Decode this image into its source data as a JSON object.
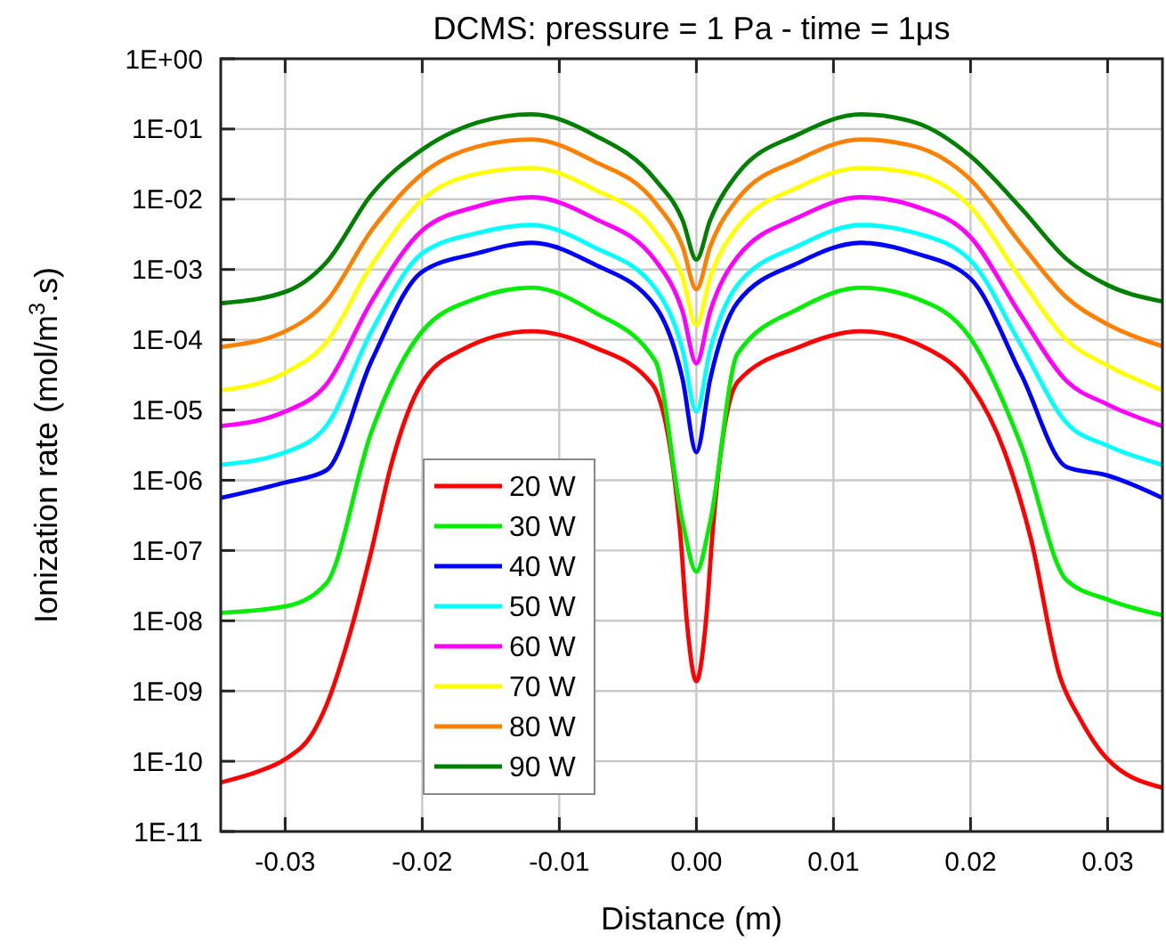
{
  "chart_data": {
    "type": "line",
    "title": "DCMS: pressure = 1 Pa - time = 1μs",
    "xlabel": "Distance (m)",
    "ylabel": "Ionization rate (mol/m$^{3}$.s)",
    "log": "y",
    "grid": true,
    "legend": "bottom left",
    "marker": "none",
    "line_style": "solid",
    "xlim": [
      -0.0347,
      0.034
    ],
    "xticks": [
      -0.03,
      -0.02,
      -0.01,
      {
        "value": 0,
        "label": "0.00"
      },
      0.01,
      0.02,
      0.03
    ],
    "ylim": [
      1e-11,
      1
    ],
    "yticks": [
      {
        "value": 1e-11,
        "label": "1E-11"
      },
      {
        "value": 1e-10,
        "label": "1E-10"
      },
      {
        "value": 1e-09,
        "label": "1E-09"
      },
      {
        "value": 1e-08,
        "label": "1E-08"
      },
      {
        "value": 1e-07,
        "label": "1E-07"
      },
      {
        "value": 1e-06,
        "label": "1E-06"
      },
      {
        "value": 1e-05,
        "label": "1E-05"
      },
      {
        "value": 0.0001,
        "label": "1E-04"
      },
      {
        "value": 0.001,
        "label": "1E-03"
      },
      {
        "value": 0.01,
        "label": "1E-02"
      },
      {
        "value": 0.1,
        "label": "1E-01"
      },
      {
        "value": 1,
        "label": "1E+00"
      }
    ],
    "x": [
      -0.0347,
      -0.03,
      -0.027,
      -0.0237,
      -0.02,
      -0.016,
      -0.012,
      -0.0075,
      -0.003,
      -0.001,
      0,
      0.001,
      0.003,
      0.0075,
      0.012,
      0.016,
      0.02,
      0.0237,
      0.027,
      0.03,
      0.034
    ],
    "series": [
      {
        "name": "20 W",
        "color": "#ff0000",
        "x": [
          -0.0347,
          -0.032,
          -0.03,
          -0.028,
          -0.027,
          -0.0254,
          -0.0237,
          -0.0223,
          -0.0201,
          -0.0171,
          -0.012,
          -0.0075,
          -0.0032,
          -0.0012,
          -0.0007,
          0,
          0.0007,
          0.0012,
          0.003,
          0.0075,
          0.012,
          0.017,
          0.02,
          0.0225,
          0.0244,
          0.0265,
          0.028,
          0.03,
          0.034
        ],
        "values": [
          5e-11,
          7.1e-11,
          1.07e-10,
          2.5e-10,
          6.2e-10,
          5.4e-09,
          1e-07,
          1.55e-06,
          2.3e-05,
          7.2e-05,
          0.000132,
          7.9e-05,
          2.3e-05,
          2e-07,
          1e-08,
          1.38e-09,
          1e-08,
          2e-07,
          2.5e-05,
          7.9e-05,
          0.000132,
          7.2e-05,
          2.3e-05,
          2.5e-06,
          1.48e-07,
          1.66e-09,
          4e-10,
          1.07e-10,
          4.2e-11
        ]
      },
      {
        "name": "30 W",
        "color": "#00ee00",
        "values": [
          1.3e-08,
          1.6e-08,
          3.4e-08,
          4.9e-06,
          0.000132,
          0.00039,
          0.00055,
          0.00025,
          5e-05,
          2.5e-07,
          5e-08,
          2.5e-07,
          6.3e-05,
          0.00028,
          0.00055,
          0.00039,
          0.000105,
          3.1e-06,
          3.8e-08,
          2e-08,
          1.2e-08
        ]
      },
      {
        "name": "40 W",
        "color": "#0000ff",
        "values": [
          5.6e-07,
          9.3e-07,
          1.38e-06,
          5e-05,
          0.00093,
          0.0017,
          0.0024,
          0.0012,
          0.0003,
          2.7e-05,
          2.5e-06,
          2.7e-05,
          0.00034,
          0.00126,
          0.0024,
          0.0017,
          0.00074,
          3.2e-05,
          1.55e-06,
          1.17e-06,
          5.6e-07
        ]
      },
      {
        "name": "50 W",
        "color": "#00ffff",
        "values": [
          1.66e-06,
          2.5e-06,
          5.9e-06,
          0.000132,
          0.0017,
          0.0033,
          0.0043,
          0.0021,
          0.00054,
          7.1e-05,
          9.5e-06,
          7.1e-05,
          0.0006,
          0.0022,
          0.0043,
          0.0033,
          0.00135,
          8.3e-05,
          6.6e-06,
          3.1e-06,
          1.66e-06
        ]
      },
      {
        "name": "60 W",
        "color": "#ff00ff",
        "values": [
          5.9e-06,
          9.5e-06,
          2.3e-05,
          0.00035,
          0.0036,
          0.0079,
          0.0107,
          0.0054,
          0.00135,
          0.00025,
          4.6e-05,
          0.00025,
          0.0015,
          0.0056,
          0.0107,
          0.0079,
          0.0029,
          0.00022,
          2.6e-05,
          1.2e-05,
          5.9e-06
        ]
      },
      {
        "name": "70 W",
        "color": "#ffff00",
        "values": [
          1.9e-05,
          3.4e-05,
          9.1e-05,
          0.00115,
          0.0098,
          0.023,
          0.028,
          0.014,
          0.0035,
          0.00076,
          0.00016,
          0.00076,
          0.004,
          0.015,
          0.028,
          0.023,
          0.0078,
          0.00072,
          0.0001,
          4.3e-05,
          1.9e-05
        ]
      },
      {
        "name": "80 W",
        "color": "#ff8000",
        "values": [
          7.9e-05,
          0.000132,
          0.00035,
          0.0036,
          0.023,
          0.056,
          0.071,
          0.035,
          0.0089,
          0.0021,
          0.00052,
          0.0021,
          0.01,
          0.037,
          0.071,
          0.056,
          0.019,
          0.0023,
          0.0004,
          0.000166,
          8.1e-05
        ]
      },
      {
        "name": "90 W",
        "color": "#008000",
        "values": [
          0.00033,
          0.00048,
          0.00126,
          0.0117,
          0.051,
          0.123,
          0.162,
          0.083,
          0.019,
          0.005,
          0.00138,
          0.005,
          0.023,
          0.085,
          0.162,
          0.123,
          0.041,
          0.0074,
          0.00141,
          0.0006,
          0.00035
        ]
      }
    ]
  }
}
